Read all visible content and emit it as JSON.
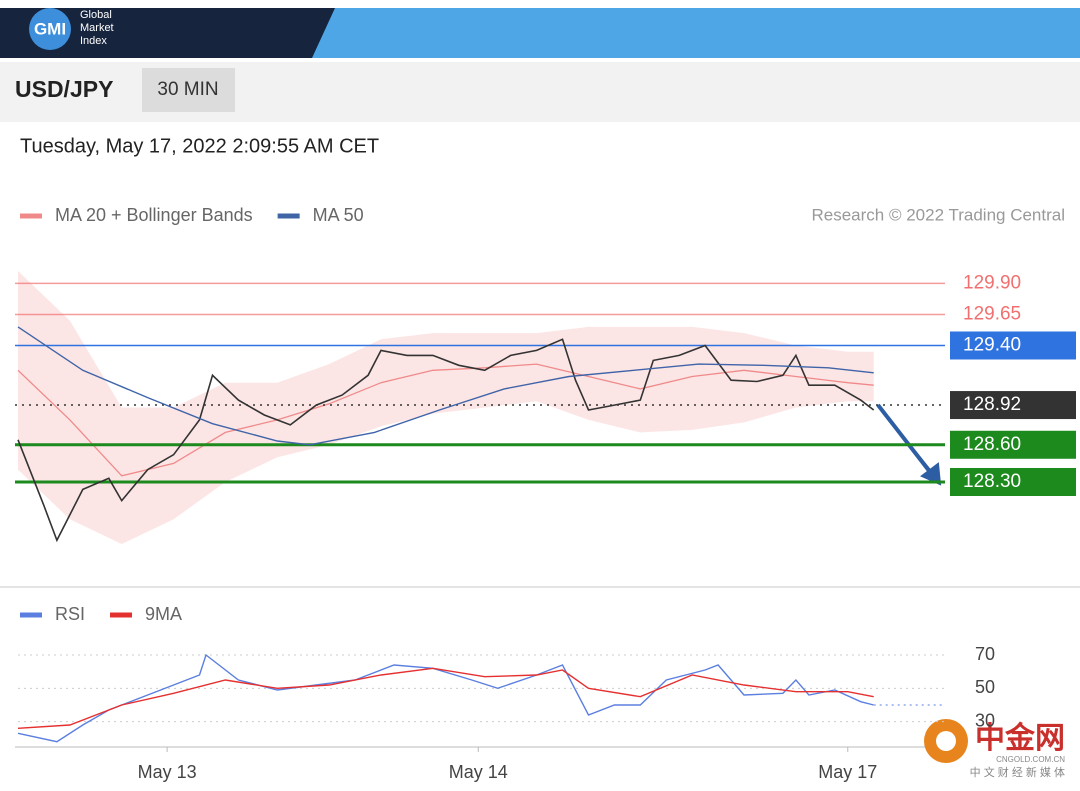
{
  "header": {
    "logo": "GMI",
    "brand": [
      "Global",
      "Market",
      "Index"
    ],
    "pair": "USD/JPY",
    "interval": "30 MIN",
    "timestamp": "Tuesday, May 17, 2022 2:09:55 AM CET"
  },
  "watermark": {
    "name": "中金网",
    "url": "CNGOLD.COM.CN",
    "tagline": "中 文 财 经 新 媒 体"
  },
  "chart_data": [
    {
      "type": "line",
      "source": "Research © 2022 Trading Central",
      "xlim": [
        0,
        143
      ],
      "ylim": [
        127.47,
        130.25
      ],
      "bands": {
        "name": "MA 20 + Bollinger Bands",
        "color": "#f08a8a",
        "x": [
          0,
          8,
          16,
          24,
          32,
          40,
          48,
          56,
          64,
          72,
          80,
          88,
          96,
          104,
          112,
          120,
          128,
          132
        ],
        "upper": [
          130.0,
          129.6,
          128.9,
          128.9,
          129.1,
          129.1,
          129.25,
          129.45,
          129.5,
          129.5,
          129.5,
          129.55,
          129.55,
          129.55,
          129.5,
          129.4,
          129.35,
          129.35
        ],
        "middle": [
          129.2,
          128.8,
          128.35,
          128.45,
          128.7,
          128.8,
          128.93,
          129.1,
          129.2,
          129.22,
          129.25,
          129.15,
          129.05,
          129.15,
          129.2,
          129.15,
          129.1,
          129.08
        ],
        "lower": [
          128.4,
          128.0,
          127.8,
          128.0,
          128.3,
          128.5,
          128.6,
          128.75,
          128.85,
          128.9,
          128.95,
          128.8,
          128.7,
          128.72,
          128.78,
          128.9,
          128.95,
          128.95
        ]
      },
      "series": [
        {
          "color": "#333333",
          "x": [
            0,
            4,
            6,
            10,
            14,
            16,
            20,
            24,
            28,
            30,
            34,
            38,
            42,
            46,
            50,
            54,
            56,
            60,
            64,
            68,
            72,
            76,
            80,
            84,
            86,
            88,
            92,
            96,
            98,
            102,
            106,
            110,
            114,
            118,
            120,
            122,
            126,
            130,
            132
          ],
          "values": [
            128.64,
            128.11,
            127.83,
            128.24,
            128.33,
            128.15,
            128.4,
            128.52,
            128.8,
            129.16,
            128.96,
            128.84,
            128.76,
            128.92,
            129.0,
            129.16,
            129.36,
            129.32,
            129.32,
            129.24,
            129.2,
            129.32,
            129.36,
            129.45,
            129.12,
            128.88,
            128.92,
            128.96,
            129.28,
            129.32,
            129.4,
            129.12,
            129.11,
            129.16,
            129.32,
            129.08,
            129.08,
            128.96,
            128.88
          ]
        },
        {
          "name": "MA 50",
          "color": "#3f64a8",
          "x": [
            0,
            10,
            20,
            30,
            40,
            45,
            55,
            65,
            75,
            85,
            95,
            105,
            115,
            125,
            132
          ],
          "values": [
            129.55,
            129.2,
            128.98,
            128.77,
            128.63,
            128.6,
            128.7,
            128.88,
            129.05,
            129.15,
            129.2,
            129.25,
            129.24,
            129.22,
            129.18
          ]
        }
      ],
      "levels": [
        {
          "value": 129.9,
          "label": "129.90",
          "color": "#f07070",
          "box": false,
          "dashed": false
        },
        {
          "value": 129.65,
          "label": "129.65",
          "color": "#f07070",
          "box": false,
          "dashed": false
        },
        {
          "value": 129.4,
          "label": "129.40",
          "color": "#2f73e0",
          "box": true,
          "dashed": false
        },
        {
          "value": 128.92,
          "label": "128.92",
          "color": "#333333",
          "box": true,
          "dashed": true
        },
        {
          "value": 128.6,
          "label": "128.60",
          "color": "#1d8a1d",
          "box": true,
          "dashed": false
        },
        {
          "value": 128.3,
          "label": "128.30",
          "color": "#1d8a1d",
          "box": true,
          "dashed": false
        }
      ]
    },
    {
      "type": "line",
      "xlim": [
        0,
        143
      ],
      "ylim": [
        16,
        76
      ],
      "yticks": [
        30,
        50,
        70
      ],
      "grid": true,
      "xticks": [
        {
          "value": 23,
          "label": "May 13"
        },
        {
          "value": 71,
          "label": "May 14"
        },
        {
          "value": 128,
          "label": "May 17"
        }
      ],
      "series": [
        {
          "name": "RSI",
          "color": "#5b7fe0",
          "x": [
            0,
            6,
            10,
            14,
            20,
            24,
            28,
            29,
            34,
            40,
            46,
            52,
            58,
            64,
            70,
            74,
            80,
            84,
            88,
            92,
            96,
            100,
            106,
            108,
            112,
            118,
            120,
            122,
            126,
            130,
            132
          ],
          "values": [
            23,
            18,
            28,
            37,
            46,
            52,
            58,
            70,
            55,
            49,
            52,
            55,
            64,
            62,
            55,
            50,
            58,
            64,
            34,
            40,
            40,
            55,
            61,
            64,
            46,
            47,
            55,
            46,
            49,
            42,
            40
          ]
        },
        {
          "name": "9MA",
          "color": "#e53030",
          "x": [
            0,
            8,
            16,
            24,
            32,
            40,
            48,
            56,
            64,
            72,
            80,
            84,
            88,
            96,
            104,
            112,
            120,
            128,
            132
          ],
          "values": [
            26,
            28,
            40,
            47,
            55,
            50,
            52,
            58,
            62,
            57,
            58,
            61,
            50,
            45,
            58,
            52,
            48,
            48,
            45
          ]
        }
      ]
    }
  ]
}
